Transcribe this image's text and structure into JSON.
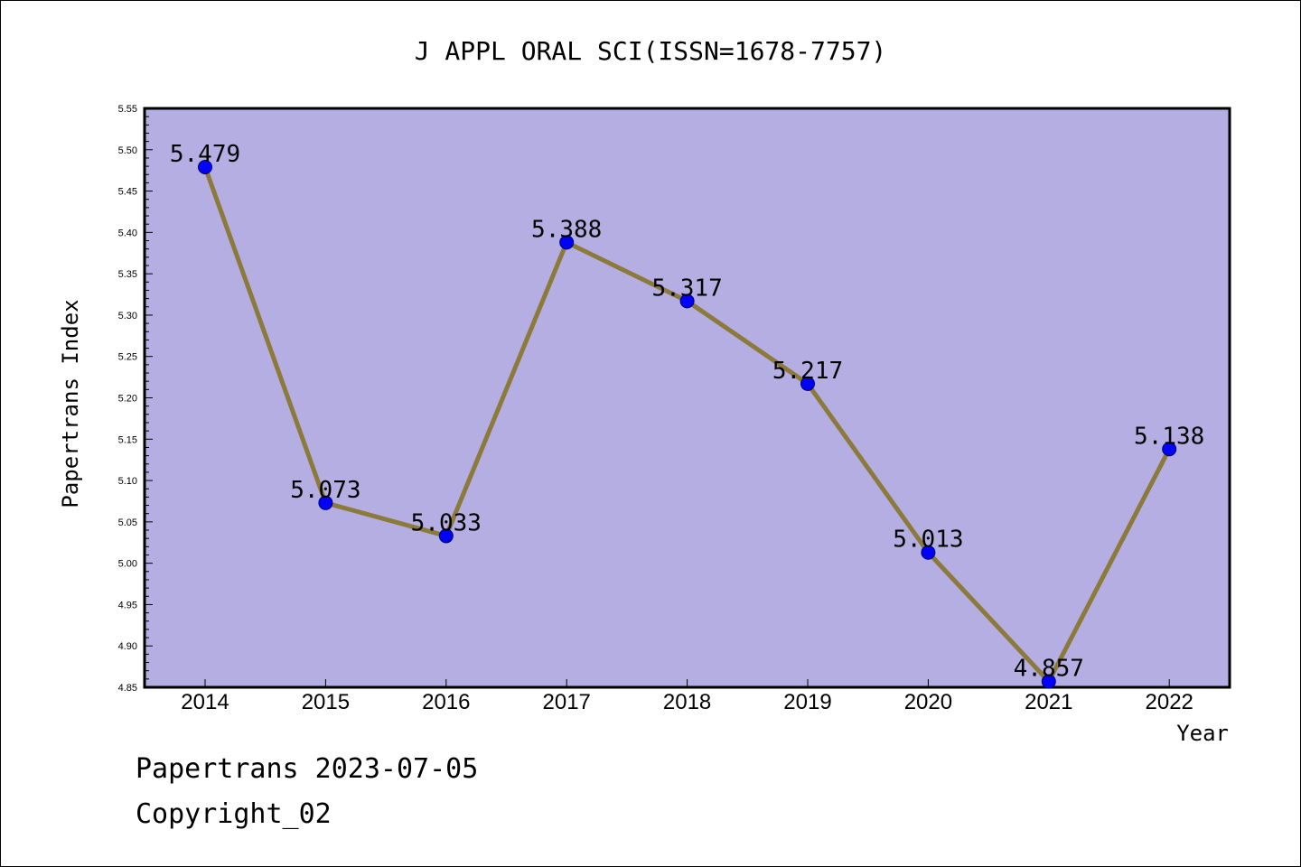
{
  "chart_data": {
    "type": "line",
    "title": "J APPL ORAL SCI(ISSN=1678-7757)",
    "xlabel": "Year",
    "ylabel": "Papertrans Index",
    "categories": [
      "2014",
      "2015",
      "2016",
      "2017",
      "2018",
      "2019",
      "2020",
      "2021",
      "2022"
    ],
    "values": [
      5.479,
      5.073,
      5.033,
      5.388,
      5.317,
      5.217,
      5.013,
      4.857,
      5.138
    ],
    "data_labels": [
      "5.479",
      "5.073",
      "5.033",
      "5.388",
      "5.317",
      "5.217",
      "5.013",
      "4.857",
      "5.138"
    ],
    "ylim": [
      4.85,
      5.55
    ],
    "ytick_labels": [
      "4.85",
      "4.90",
      "4.95",
      "5.00",
      "5.05",
      "5.10",
      "5.15",
      "5.20",
      "5.25",
      "5.30",
      "5.35",
      "5.40",
      "5.45",
      "5.50",
      "5.55"
    ],
    "grid": false,
    "legend": "none",
    "colors": {
      "plot_background": "#b4aee2",
      "line": "#8b7a3a",
      "marker": "#0000ff",
      "axes": "#000000"
    }
  },
  "footer": {
    "line1": "Papertrans 2023-07-05",
    "line2": "Copyright_02"
  }
}
